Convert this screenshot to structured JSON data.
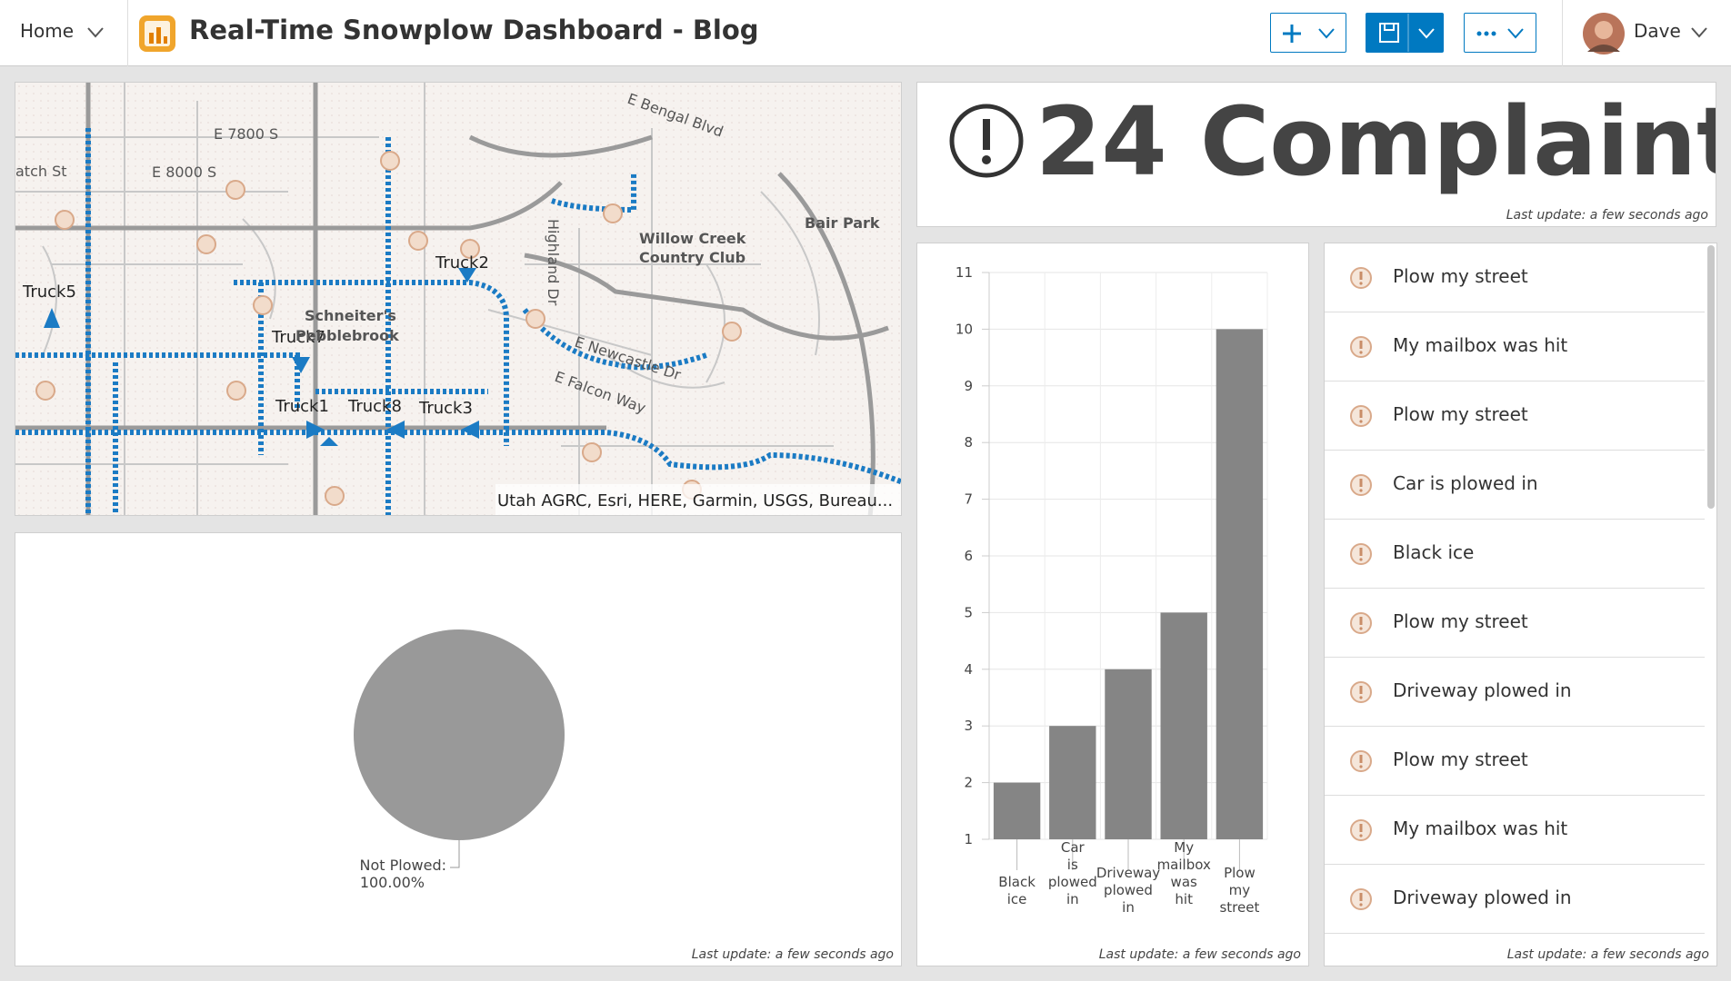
{
  "header": {
    "home": "Home",
    "title": "Real-Time Snowplow Dashboard - Blog",
    "user": "Dave"
  },
  "map": {
    "labels": [
      "Truck5",
      "Truck7",
      "Truck2",
      "Truck1",
      "Truck8",
      "Truck3"
    ],
    "places": [
      "Willow Creek",
      "Country Club",
      "Bair Park",
      "Schneiter's",
      "Pebblebrook",
      "E 7800 S",
      "E 8000 S",
      "E Bengal Blvd",
      "E Newcastle Dr",
      "E Falcon Way",
      "Highland Dr",
      "atch St"
    ],
    "attribution": "Utah AGRC, Esri, HERE, Garmin, USGS, Bureau..."
  },
  "indicator": {
    "count": 24,
    "label": "Complaints",
    "last_update": "Last update: a few seconds ago"
  },
  "pie_panel": {
    "last_update": "Last update: a few seconds ago"
  },
  "bar_panel": {
    "last_update": "Last update: a few seconds ago"
  },
  "list": {
    "items": [
      "Plow my street",
      "My mailbox was hit",
      "Plow my street",
      "Car is plowed in",
      "Black ice",
      "Plow my street",
      "Driveway plowed in",
      "Plow my street",
      "My mailbox was hit",
      "Driveway plowed in"
    ],
    "last_update": "Last update: a few seconds ago"
  },
  "chart_data": [
    {
      "type": "pie",
      "categories": [
        "Not Plowed:"
      ],
      "values": [
        100
      ],
      "value_labels": [
        "100.00%"
      ],
      "colors": [
        "#999999"
      ]
    },
    {
      "type": "bar",
      "categories": [
        "Black ice",
        "Car is plowed in",
        "Driveway plowed in",
        "My mailbox was hit",
        "Plow my street"
      ],
      "values": [
        2,
        3,
        4,
        5,
        10
      ],
      "color": "#858585",
      "ylim": [
        1,
        11
      ],
      "yticks": [
        1,
        2,
        3,
        4,
        5,
        6,
        7,
        8,
        9,
        10,
        11
      ],
      "grid": true
    }
  ]
}
